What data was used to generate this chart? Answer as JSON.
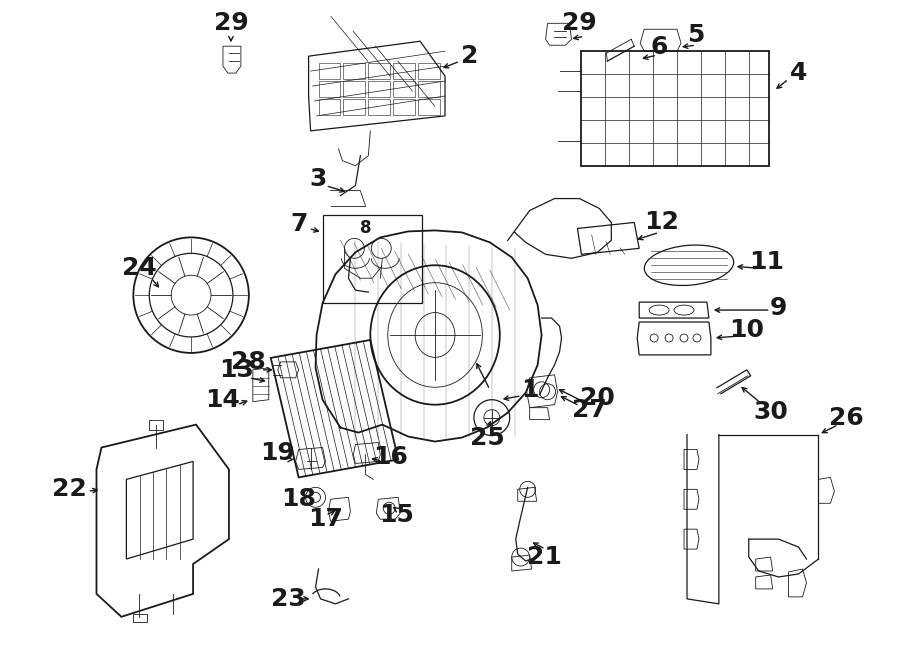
{
  "bg_color": "#ffffff",
  "line_color": "#1a1a1a",
  "fig_width": 9.0,
  "fig_height": 6.61,
  "dpi": 100,
  "label_fontsize": 14,
  "label_fontsize_sm": 12,
  "lw_main": 1.3,
  "lw_med": 0.9,
  "lw_thin": 0.6
}
